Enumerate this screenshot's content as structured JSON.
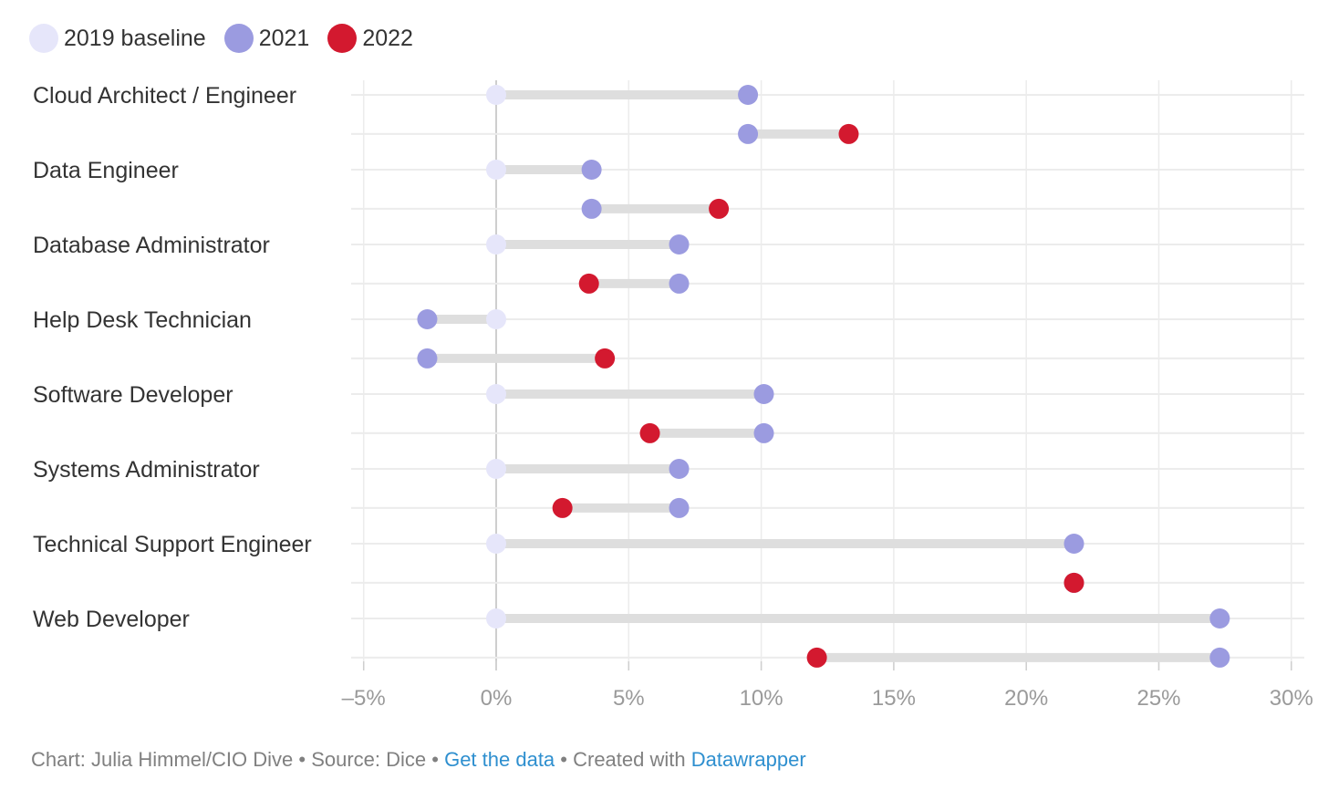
{
  "legend": {
    "baseline_label": "2019 baseline",
    "y2021_label": "2021",
    "y2022_label": "2022"
  },
  "colors": {
    "baseline": "#e6e6fa",
    "y2021": "#9b9be0",
    "y2022": "#d3192f",
    "connector": "#dedede",
    "grid": "#ececec",
    "zero_line": "#bdbdbd",
    "text": "#333333",
    "tick_text": "#9a9a9a",
    "link": "#2e8fcf"
  },
  "chart_data": {
    "type": "dot-range",
    "x_axis": {
      "ticks": [
        -5,
        0,
        5,
        10,
        15,
        20,
        25,
        30
      ],
      "tick_labels": [
        "–5%",
        "0%",
        "5%",
        "10%",
        "15%",
        "20%",
        "25%",
        "30%"
      ],
      "range": [
        -5.5,
        30.5
      ],
      "grid": true
    },
    "series": [
      {
        "name": "2019 baseline",
        "color": "#e6e6fa"
      },
      {
        "name": "2021",
        "color": "#9b9be0"
      },
      {
        "name": "2022",
        "color": "#d3192f"
      }
    ],
    "categories": [
      {
        "label": "Cloud Architect / Engineer",
        "baseline": 0,
        "y2021": 9.5,
        "y2022": 13.3
      },
      {
        "label": "Data Engineer",
        "baseline": 0,
        "y2021": 3.6,
        "y2022": 8.4
      },
      {
        "label": "Database Administrator",
        "baseline": 0,
        "y2021": 6.9,
        "y2022": 3.5
      },
      {
        "label": "Help Desk Technician",
        "baseline": 0,
        "y2021": -2.6,
        "y2022": 4.1
      },
      {
        "label": "Software Developer",
        "baseline": 0,
        "y2021": 10.1,
        "y2022": 5.8
      },
      {
        "label": "Systems Administrator",
        "baseline": 0,
        "y2021": 6.9,
        "y2022": 2.5
      },
      {
        "label": "Technical Support Engineer",
        "baseline": 0,
        "y2021": 21.8,
        "y2022": 21.8
      },
      {
        "label": "Web Developer",
        "baseline": 0,
        "y2021": 27.3,
        "y2022": 12.1
      }
    ]
  },
  "footer": {
    "prefix": "Chart: Julia Himmel/CIO Dive • Source: Dice • ",
    "get_data": "Get the data",
    "middle": " • Created with ",
    "datawrapper": "Datawrapper"
  }
}
